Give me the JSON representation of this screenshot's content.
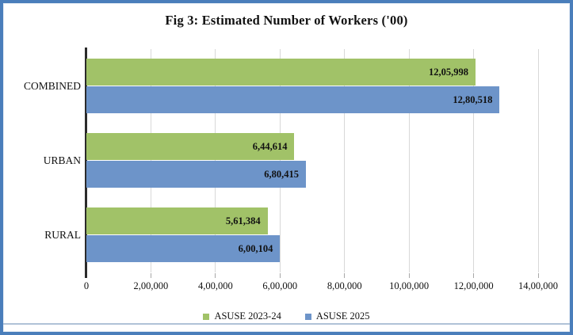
{
  "title": "Fig 3: Estimated Number of Workers ('00)",
  "colors": {
    "frame_border": "#4A7EBB",
    "series_green": "#A1C268",
    "series_blue": "#6D94C9",
    "gridline": "#D8D8D8",
    "axis": "#2B2B2B",
    "bottom_rule": "#B0C2D7"
  },
  "chart_data": {
    "type": "bar",
    "orientation": "horizontal",
    "title": "Fig 3: Estimated Number of Workers ('00)",
    "categories": [
      "COMBINED",
      "URBAN",
      "RURAL"
    ],
    "series": [
      {
        "name": "ASUSE 2023-24",
        "color": "#A1C268",
        "values": [
          1205998,
          644614,
          561384
        ],
        "labels": [
          "12,05,998",
          "6,44,614",
          "5,61,384"
        ]
      },
      {
        "name": "ASUSE 2025",
        "color": "#6D94C9",
        "values": [
          1280518,
          680415,
          600104
        ],
        "labels": [
          "12,80,518",
          "6,80,415",
          "6,00,104"
        ]
      }
    ],
    "xlim": [
      0,
      1400000
    ],
    "x_ticks": [
      "0",
      "2,00,000",
      "4,00,000",
      "6,00,000",
      "8,00,000",
      "10,00,000",
      "12,00,000",
      "14,00,000"
    ],
    "grid": true,
    "legend_position": "bottom"
  }
}
